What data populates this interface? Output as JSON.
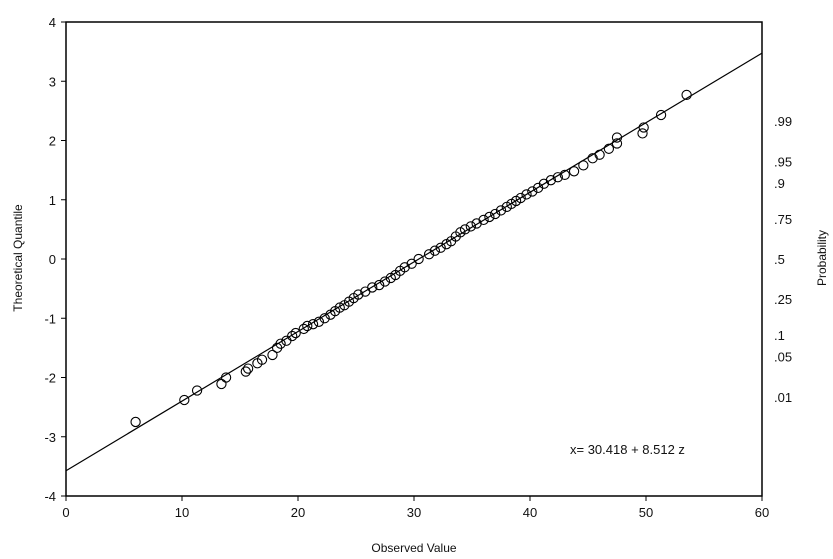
{
  "chart_data": {
    "type": "scatter",
    "title": "",
    "xlabel": "Observed Value",
    "ylabel": "Theoretical Quantile",
    "y2label": "Probability",
    "xlim": [
      0,
      60
    ],
    "ylim": [
      -4,
      4
    ],
    "x_ticks": [
      "0",
      "10",
      "20",
      "30",
      "40",
      "50",
      "60"
    ],
    "y_ticks": [
      "-4",
      "-3",
      "-2",
      "-1",
      "0",
      "1",
      "2",
      "3",
      "4"
    ],
    "y2_ticks": [
      {
        "label": ".99",
        "z": 2.326
      },
      {
        "label": ".95",
        "z": 1.645
      },
      {
        "label": ".9",
        "z": 1.282
      },
      {
        "label": ".75",
        "z": 0.674
      },
      {
        "label": ".5",
        "z": 0
      },
      {
        "label": ".25",
        "z": -0.674
      },
      {
        "label": ".1",
        "z": -1.282
      },
      {
        "label": ".05",
        "z": -1.645
      },
      {
        "label": ".01",
        "z": -2.326
      }
    ],
    "fit_line": {
      "intercept": 30.418,
      "slope": 8.512
    },
    "equation": "x= 30.418 + 8.512 z",
    "grid": false,
    "series": [
      {
        "points": [
          [
            6.0,
            -2.75
          ],
          [
            10.2,
            -2.38
          ],
          [
            11.3,
            -2.22
          ],
          [
            13.4,
            -2.11
          ],
          [
            13.8,
            -2.0
          ],
          [
            15.5,
            -1.9
          ],
          [
            15.7,
            -1.85
          ],
          [
            16.5,
            -1.76
          ],
          [
            16.9,
            -1.7
          ],
          [
            17.8,
            -1.62
          ],
          [
            18.2,
            -1.5
          ],
          [
            18.5,
            -1.43
          ],
          [
            19.0,
            -1.38
          ],
          [
            19.5,
            -1.3
          ],
          [
            19.8,
            -1.25
          ],
          [
            20.5,
            -1.18
          ],
          [
            20.8,
            -1.13
          ],
          [
            21.3,
            -1.1
          ],
          [
            21.8,
            -1.06
          ],
          [
            22.3,
            -1.0
          ],
          [
            22.8,
            -0.94
          ],
          [
            23.2,
            -0.88
          ],
          [
            23.6,
            -0.82
          ],
          [
            24.0,
            -0.78
          ],
          [
            24.4,
            -0.72
          ],
          [
            24.8,
            -0.66
          ],
          [
            25.2,
            -0.6
          ],
          [
            25.8,
            -0.55
          ],
          [
            26.4,
            -0.48
          ],
          [
            27.0,
            -0.44
          ],
          [
            27.5,
            -0.38
          ],
          [
            28.0,
            -0.32
          ],
          [
            28.4,
            -0.27
          ],
          [
            28.8,
            -0.2
          ],
          [
            29.2,
            -0.14
          ],
          [
            29.8,
            -0.08
          ],
          [
            30.4,
            0.0
          ],
          [
            31.3,
            0.08
          ],
          [
            31.8,
            0.14
          ],
          [
            32.3,
            0.19
          ],
          [
            32.8,
            0.25
          ],
          [
            33.2,
            0.3
          ],
          [
            33.6,
            0.38
          ],
          [
            34.0,
            0.45
          ],
          [
            34.4,
            0.5
          ],
          [
            34.9,
            0.55
          ],
          [
            35.4,
            0.6
          ],
          [
            36.0,
            0.66
          ],
          [
            36.5,
            0.71
          ],
          [
            37.0,
            0.76
          ],
          [
            37.5,
            0.82
          ],
          [
            38.0,
            0.88
          ],
          [
            38.4,
            0.93
          ],
          [
            38.8,
            0.98
          ],
          [
            39.2,
            1.03
          ],
          [
            39.7,
            1.09
          ],
          [
            40.2,
            1.14
          ],
          [
            40.7,
            1.2
          ],
          [
            41.2,
            1.27
          ],
          [
            41.8,
            1.33
          ],
          [
            42.4,
            1.38
          ],
          [
            43.0,
            1.42
          ],
          [
            43.8,
            1.48
          ],
          [
            44.6,
            1.58
          ],
          [
            45.4,
            1.7
          ],
          [
            46.0,
            1.76
          ],
          [
            46.8,
            1.86
          ],
          [
            47.5,
            1.95
          ],
          [
            47.5,
            2.05
          ],
          [
            49.7,
            2.12
          ],
          [
            49.8,
            2.22
          ],
          [
            51.3,
            2.43
          ],
          [
            53.5,
            2.77
          ]
        ]
      }
    ]
  }
}
